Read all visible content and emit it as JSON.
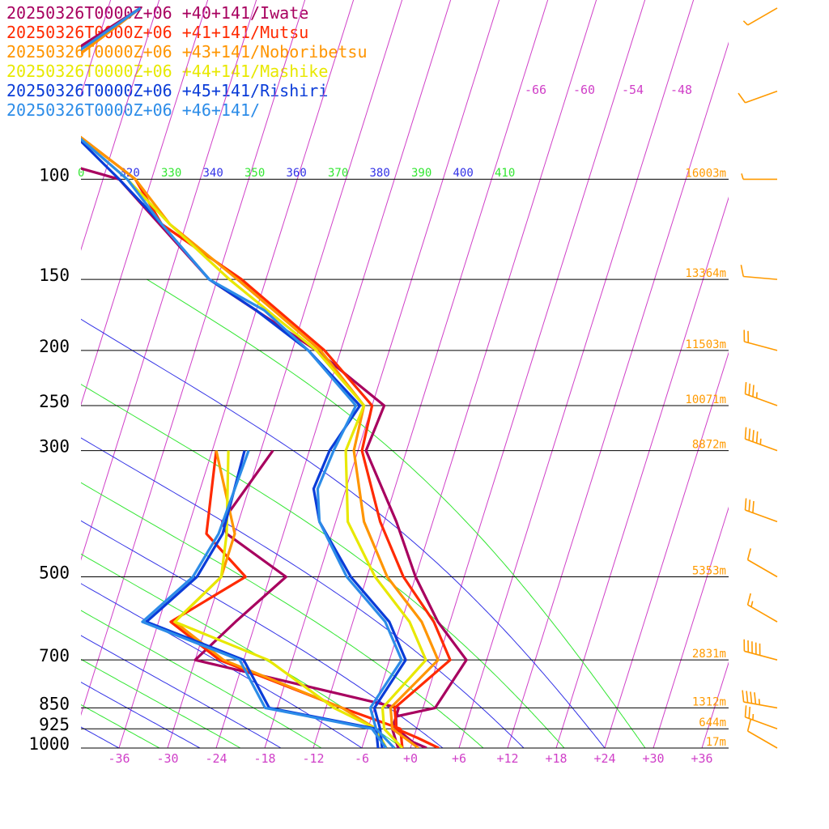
{
  "legend": [
    {
      "text": "20250326T0000Z+06 +40+141/Iwate",
      "color": "#a8005f"
    },
    {
      "text": "20250326T0000Z+06 +41+141/Mutsu",
      "color": "#ff2a00"
    },
    {
      "text": "20250326T0000Z+06 +43+141/Noboribetsu",
      "color": "#ff9500"
    },
    {
      "text": "20250326T0000Z+06 +44+141/Mashike",
      "color": "#e8e800"
    },
    {
      "text": "20250326T0000Z+06 +45+141/Rishiri",
      "color": "#0a3cd8"
    },
    {
      "text": "20250326T0000Z+06 +46+141/",
      "color": "#2c8ce8"
    }
  ],
  "chart_data": {
    "type": "line",
    "chart_kind": "skew-T log-P sounding",
    "x_axis": {
      "unit": "°C",
      "ticks": [
        "-36",
        "-30",
        "-24",
        "-18",
        "-12",
        "-6",
        "+0",
        "+6",
        "+12",
        "+18",
        "+24",
        "+30",
        "+36"
      ]
    },
    "y_axis": {
      "scale": "log",
      "unit": "hPa",
      "ticks": [
        "100",
        "150",
        "200",
        "250",
        "300",
        "500",
        "700",
        "850",
        "925",
        "1000"
      ]
    },
    "upper_isotherm_labels": [
      "-66",
      "-60",
      "-54",
      "-48"
    ],
    "theta_labels": [
      "0",
      "320",
      "330",
      "340",
      "350",
      "360",
      "370",
      "380",
      "390",
      "400",
      "410"
    ],
    "heights": [
      {
        "p": 100,
        "label": "16003m"
      },
      {
        "p": 150,
        "label": "13364m"
      },
      {
        "p": 200,
        "label": "11503m"
      },
      {
        "p": 250,
        "label": "10071m"
      },
      {
        "p": 300,
        "label": "8872m"
      },
      {
        "p": 500,
        "label": "5353m"
      },
      {
        "p": 700,
        "label": "2831m"
      },
      {
        "p": 850,
        "label": "1312m"
      },
      {
        "p": 925,
        "label": "644m"
      },
      {
        "p": 1000,
        "label": "17m"
      }
    ],
    "series": [
      {
        "name": "20250326T0000Z+06 +40+141/Iwate",
        "color": "#a8005f",
        "temperature": [
          [
            1000,
            2
          ],
          [
            975,
            0
          ],
          [
            925,
            -2.5
          ],
          [
            880,
            -3
          ],
          [
            850,
            1.5
          ],
          [
            700,
            3.5
          ],
          [
            600,
            -1.5
          ],
          [
            500,
            -6
          ],
          [
            400,
            -10.5
          ],
          [
            300,
            -17
          ],
          [
            250,
            -16.5
          ],
          [
            200,
            -27
          ],
          [
            150,
            -43
          ],
          [
            100,
            -58
          ],
          [
            88,
            -73
          ],
          [
            75,
            -76
          ],
          [
            65,
            -72
          ],
          [
            50,
            -62
          ]
        ],
        "dewpoint": [
          [
            1000,
            -1.5
          ],
          [
            975,
            -2
          ],
          [
            925,
            -3
          ],
          [
            850,
            -3
          ],
          [
            700,
            -30
          ],
          [
            600,
            -26.5
          ],
          [
            500,
            -22
          ],
          [
            420,
            -31
          ],
          [
            400,
            -32
          ],
          [
            300,
            -28.5
          ]
        ]
      },
      {
        "name": "20250326T0000Z+06 +41+141/Mutsu",
        "color": "#ff2a00",
        "temperature": [
          [
            1000,
            3.5
          ],
          [
            960,
            0.5
          ],
          [
            925,
            -2.5
          ],
          [
            850,
            -3.5
          ],
          [
            700,
            1.5
          ],
          [
            600,
            -2
          ],
          [
            500,
            -7.5
          ],
          [
            400,
            -12.5
          ],
          [
            300,
            -17.5
          ],
          [
            250,
            -18
          ],
          [
            200,
            -26
          ],
          [
            150,
            -39
          ],
          [
            120,
            -51
          ],
          [
            100,
            -56
          ],
          [
            80,
            -67
          ],
          [
            65,
            -70
          ],
          [
            50,
            -62
          ]
        ],
        "dewpoint": [
          [
            1000,
            -1
          ],
          [
            925,
            -2
          ],
          [
            850,
            -10
          ],
          [
            700,
            -27
          ],
          [
            600,
            -34.5
          ],
          [
            500,
            -27
          ],
          [
            420,
            -33.5
          ],
          [
            300,
            -35.5
          ]
        ]
      },
      {
        "name": "20250326T0000Z+06 +43+141/Noboribetsu",
        "color": "#ff9500",
        "temperature": [
          [
            1000,
            1
          ],
          [
            925,
            -3
          ],
          [
            850,
            -4
          ],
          [
            700,
            0
          ],
          [
            600,
            -3.5
          ],
          [
            500,
            -9.5
          ],
          [
            400,
            -14.5
          ],
          [
            300,
            -18.5
          ],
          [
            250,
            -19
          ],
          [
            200,
            -26.5
          ],
          [
            150,
            -39.5
          ],
          [
            120,
            -50
          ],
          [
            100,
            -56
          ],
          [
            80,
            -67
          ],
          [
            65,
            -70
          ],
          [
            50,
            -62
          ]
        ],
        "dewpoint": [
          [
            1000,
            -3
          ],
          [
            925,
            -5
          ],
          [
            850,
            -10
          ],
          [
            700,
            -26.5
          ],
          [
            600,
            -34
          ],
          [
            500,
            -30
          ],
          [
            420,
            -30
          ],
          [
            300,
            -35.5
          ]
        ]
      },
      {
        "name": "20250326T0000Z+06 +44+141/Mashike",
        "color": "#e8e800",
        "temperature": [
          [
            1000,
            -1
          ],
          [
            925,
            -4
          ],
          [
            850,
            -5
          ],
          [
            700,
            -1.5
          ],
          [
            600,
            -5
          ],
          [
            500,
            -11
          ],
          [
            400,
            -16.5
          ],
          [
            300,
            -19.5
          ],
          [
            250,
            -19
          ],
          [
            200,
            -27
          ],
          [
            150,
            -40.5
          ],
          [
            120,
            -50
          ],
          [
            100,
            -57
          ],
          [
            80,
            -67
          ],
          [
            65,
            -71
          ],
          [
            50,
            -62
          ]
        ],
        "dewpoint": [
          [
            1000,
            -3
          ],
          [
            925,
            -5
          ],
          [
            850,
            -11
          ],
          [
            700,
            -21
          ],
          [
            600,
            -34
          ],
          [
            500,
            -30
          ],
          [
            420,
            -31
          ],
          [
            300,
            -34
          ]
        ]
      },
      {
        "name": "20250326T0000Z+06 +45+141/Rishiri",
        "color": "#0a3cd8",
        "temperature": [
          [
            1000,
            -3.5
          ],
          [
            925,
            -4.5
          ],
          [
            850,
            -6
          ],
          [
            700,
            -4
          ],
          [
            600,
            -7.5
          ],
          [
            500,
            -14
          ],
          [
            400,
            -20
          ],
          [
            350,
            -22
          ],
          [
            300,
            -21.5
          ],
          [
            250,
            -19.5
          ],
          [
            200,
            -28
          ],
          [
            170,
            -36
          ],
          [
            150,
            -43
          ],
          [
            120,
            -51
          ],
          [
            100,
            -58
          ],
          [
            80,
            -67
          ],
          [
            65,
            -71
          ],
          [
            50,
            -62
          ]
        ],
        "dewpoint": [
          [
            1000,
            -4
          ],
          [
            925,
            -5
          ],
          [
            850,
            -19
          ],
          [
            700,
            -24
          ],
          [
            600,
            -37.5
          ],
          [
            500,
            -33
          ],
          [
            420,
            -31.5
          ],
          [
            300,
            -32
          ]
        ]
      },
      {
        "name": "20250326T0000Z+06 +46+141/",
        "color": "#2c8ce8",
        "temperature": [
          [
            1000,
            -2
          ],
          [
            925,
            -5
          ],
          [
            850,
            -6.5
          ],
          [
            700,
            -4.5
          ],
          [
            600,
            -8
          ],
          [
            500,
            -14.5
          ],
          [
            400,
            -20
          ],
          [
            350,
            -21.5
          ],
          [
            300,
            -21
          ],
          [
            250,
            -20
          ],
          [
            200,
            -28
          ],
          [
            170,
            -35
          ],
          [
            150,
            -43
          ],
          [
            120,
            -51
          ],
          [
            100,
            -57
          ],
          [
            80,
            -67
          ],
          [
            65,
            -71
          ],
          [
            50,
            -62
          ]
        ],
        "dewpoint": [
          [
            1000,
            -3
          ],
          [
            925,
            -5.5
          ],
          [
            850,
            -19.5
          ],
          [
            700,
            -24.5
          ],
          [
            600,
            -38
          ],
          [
            500,
            -33.5
          ],
          [
            420,
            -32
          ],
          [
            300,
            -31.5
          ]
        ]
      }
    ],
    "wind_barb_color": "#ff9a00",
    "wind_barbs": [
      {
        "p": 1000,
        "speed": 10,
        "dir": 300
      },
      {
        "p": 925,
        "speed": 25,
        "dir": 290
      },
      {
        "p": 850,
        "speed": 45,
        "dir": 280
      },
      {
        "p": 700,
        "speed": 50,
        "dir": 285
      },
      {
        "p": 600,
        "speed": 15,
        "dir": 300
      },
      {
        "p": 500,
        "speed": 10,
        "dir": 300
      },
      {
        "p": 400,
        "speed": 30,
        "dir": 290
      },
      {
        "p": 300,
        "speed": 45,
        "dir": 290
      },
      {
        "p": 250,
        "speed": 35,
        "dir": 290
      },
      {
        "p": 200,
        "speed": 20,
        "dir": 285
      },
      {
        "p": 150,
        "speed": 10,
        "dir": 275
      },
      {
        "p": 100,
        "speed": 5,
        "dir": 270
      },
      {
        "p": 70,
        "speed": 10,
        "dir": 250
      },
      {
        "p": 50,
        "speed": 5,
        "dir": 240
      }
    ]
  }
}
